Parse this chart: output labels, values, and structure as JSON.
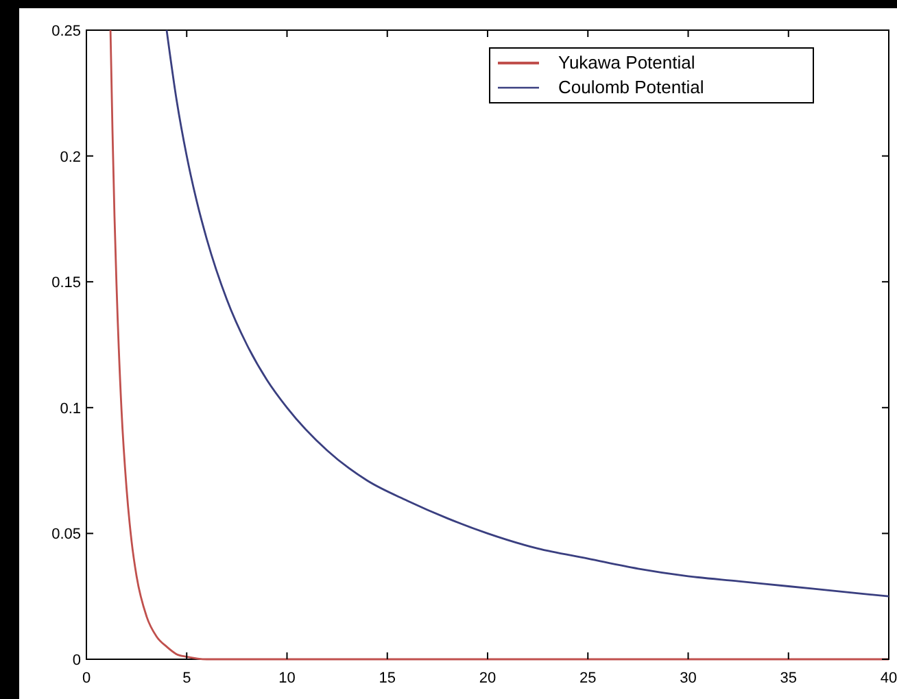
{
  "chart_data": {
    "type": "line",
    "xlim": [
      0,
      40
    ],
    "ylim": [
      0,
      0.25
    ],
    "xticks": [
      0,
      5,
      10,
      15,
      20,
      25,
      30,
      35,
      40
    ],
    "yticks": [
      0,
      0.05,
      0.1,
      0.15,
      0.2,
      0.25
    ],
    "legend": "top right",
    "grid": false,
    "marker": "none",
    "line_style": "solid",
    "series": [
      {
        "name": "Yukawa Potential",
        "color": "#c0504d",
        "x": [
          1.2,
          1.3,
          1.4,
          1.5,
          1.75,
          2,
          2.25,
          2.5,
          3,
          3.5,
          4,
          4.5,
          5,
          6,
          8,
          10,
          20,
          30,
          40
        ],
        "values": [
          0.25,
          0.21,
          0.176,
          0.149,
          0.099,
          0.068,
          0.047,
          0.033,
          0.017,
          0.009,
          0.005,
          0.002,
          0.001,
          0,
          0,
          0,
          0,
          0,
          0
        ]
      },
      {
        "name": "Coulomb Potential",
        "color": "#3a3f80",
        "x": [
          4,
          4.5,
          5,
          5.5,
          6,
          7,
          8,
          9,
          10,
          12,
          14,
          16,
          18,
          20,
          22.5,
          25,
          27.5,
          30,
          32.5,
          35,
          37.5,
          40
        ],
        "values": [
          0.25,
          0.222,
          0.2,
          0.182,
          0.167,
          0.143,
          0.125,
          0.111,
          0.1,
          0.083,
          0.071,
          0.063,
          0.056,
          0.05,
          0.044,
          0.04,
          0.036,
          0.033,
          0.031,
          0.029,
          0.027,
          0.025
        ]
      }
    ]
  }
}
